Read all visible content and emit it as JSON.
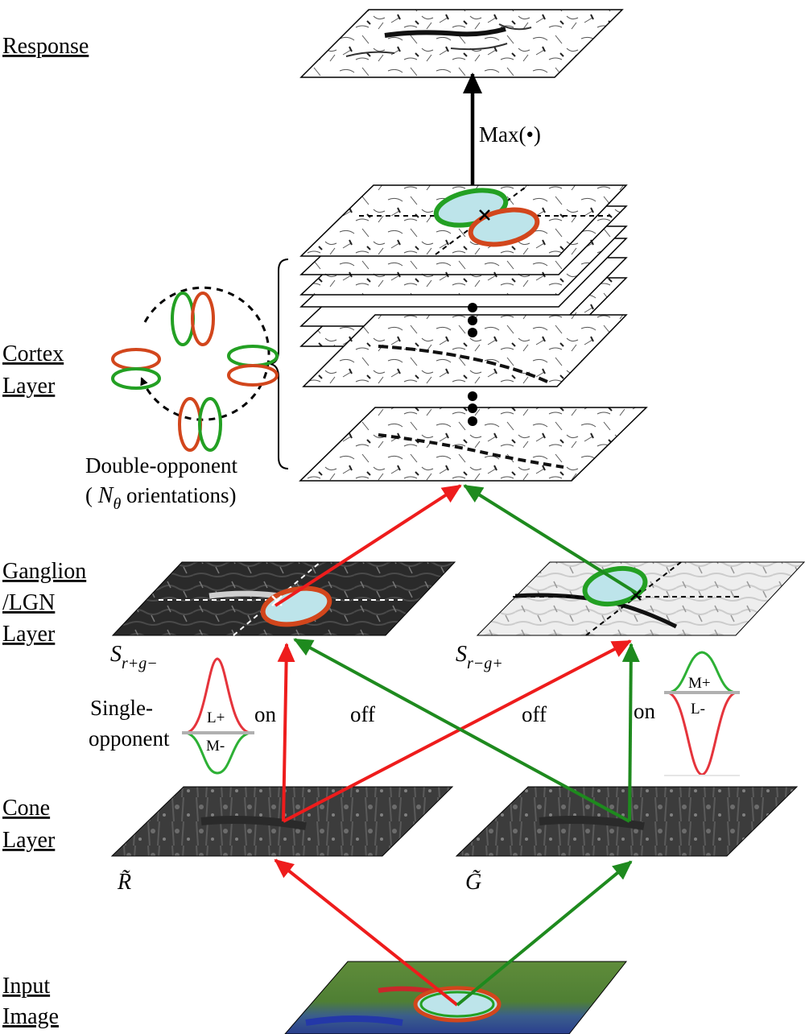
{
  "layers": {
    "response": "Response",
    "cortex": [
      "Cortex",
      "Layer"
    ],
    "ganglion": [
      "Ganglion",
      "/LGN",
      "Layer"
    ],
    "cone": [
      "Cone",
      "Layer"
    ],
    "input": [
      "Input",
      "Image"
    ]
  },
  "max_operator": "Max(•)",
  "double_opponent": {
    "line1": "Double-opponent",
    "line2_prefix": "( ",
    "symbol": "N",
    "symbol_sub": "θ",
    "line2_suffix": " orientations)"
  },
  "ganglion_maps": {
    "left": {
      "symbol": "S",
      "subscript": "r+g−"
    },
    "right": {
      "symbol": "S",
      "subscript": "r−g+"
    }
  },
  "single_opponent": [
    "Single-",
    "opponent"
  ],
  "profile_left": {
    "top": "L+",
    "bottom": "M-"
  },
  "profile_right": {
    "top": "M+",
    "bottom": "L-"
  },
  "connection_labels": {
    "on_left": "on",
    "off_left": "off",
    "off_right": "off",
    "on_right": "on"
  },
  "cone_maps": {
    "left": "R̃",
    "right": "G̃"
  },
  "colors": {
    "red_path": "#ee1c1c",
    "green_path": "#1e8a1e",
    "rf_red": "#d2461c",
    "rf_green": "#23a023",
    "rf_fill": "#bde4ea"
  }
}
